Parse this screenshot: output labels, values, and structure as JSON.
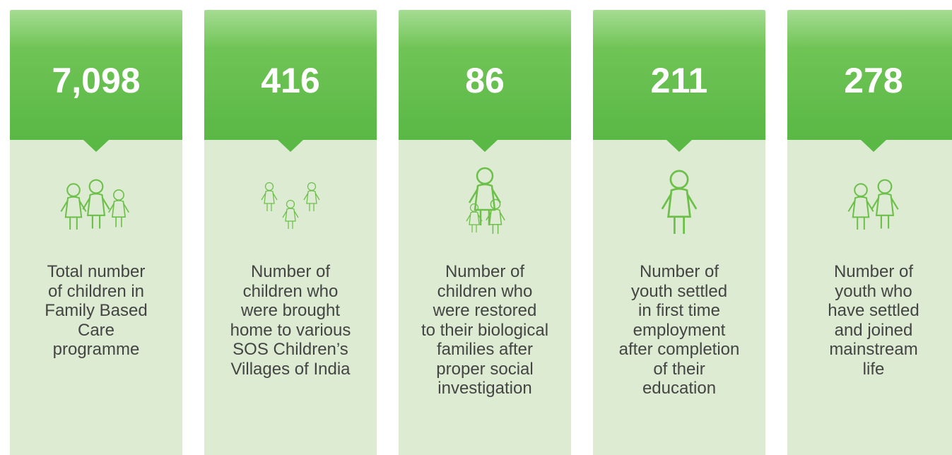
{
  "cards": [
    {
      "value": "7,098",
      "lines": [
        "Total number",
        "of children in",
        "Family Based",
        "Care",
        "programme"
      ]
    },
    {
      "value": "416",
      "lines": [
        "Number of",
        "children who",
        "were brought",
        "home to various",
        "SOS Children’s",
        "Villages of India"
      ]
    },
    {
      "value": "86",
      "lines": [
        "Number of",
        "children who",
        "were restored",
        "to their biological",
        "families after",
        "proper social",
        "investigation"
      ]
    },
    {
      "value": "211",
      "lines": [
        "Number of",
        "youth settled",
        "in first time",
        "employment",
        "after completion",
        "of their",
        "education"
      ]
    },
    {
      "value": "278",
      "lines": [
        "Number of",
        "youth who",
        "have settled",
        "and joined",
        "mainstream",
        "life"
      ]
    }
  ]
}
